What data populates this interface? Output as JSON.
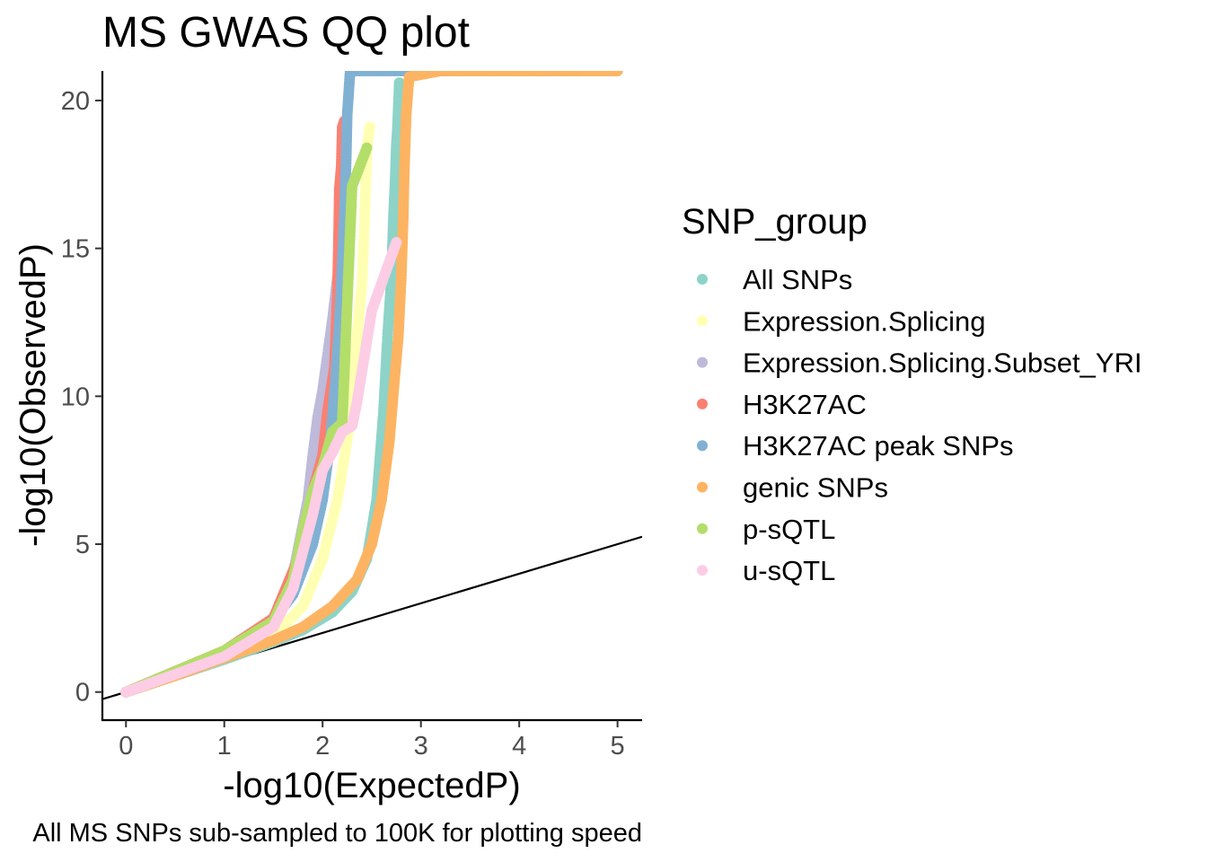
{
  "chart_data": {
    "type": "scatter",
    "title": "MS GWAS QQ plot",
    "xlabel": "-log10(ExpectedP)",
    "ylabel": "-log10(ObservedP)",
    "caption": "All MS SNPs sub-sampled to 100K for plotting speed",
    "xlim": [
      -0.24,
      5.25
    ],
    "ylim": [
      -0.95,
      21.0
    ],
    "x_ticks": [
      0,
      1,
      2,
      3,
      4,
      5
    ],
    "y_ticks": [
      0,
      5,
      10,
      15,
      20
    ],
    "grid": false,
    "reference_line": {
      "intercept": 0,
      "slope": 1
    },
    "legend": {
      "title": "SNP_group",
      "placement": "right",
      "entries": [
        {
          "name": "All SNPs",
          "color": "#8DD3C7"
        },
        {
          "name": "Expression.Splicing",
          "color": "#FFFFB3"
        },
        {
          "name": "Expression.Splicing.Subset_YRI",
          "color": "#BEBADA"
        },
        {
          "name": "H3K27AC",
          "color": "#FB8072"
        },
        {
          "name": "H3K27AC peak SNPs",
          "color": "#80B1D3"
        },
        {
          "name": "genic SNPs",
          "color": "#FDB462"
        },
        {
          "name": "p-sQTL",
          "color": "#B3DE69"
        },
        {
          "name": "u-sQTL",
          "color": "#FCCDE5"
        }
      ]
    },
    "series": [
      {
        "name": "All SNPs",
        "color": "#8DD3C7",
        "points": [
          [
            0,
            0
          ],
          [
            0.5,
            0.55
          ],
          [
            1,
            1.1
          ],
          [
            1.5,
            1.7
          ],
          [
            1.8,
            2.1
          ],
          [
            2.1,
            2.7
          ],
          [
            2.3,
            3.4
          ],
          [
            2.45,
            4.5
          ],
          [
            2.55,
            6.5
          ],
          [
            2.62,
            9.5
          ],
          [
            2.66,
            12
          ],
          [
            2.7,
            14
          ],
          [
            2.72,
            16
          ],
          [
            2.74,
            17.5
          ],
          [
            2.75,
            18.5
          ],
          [
            2.76,
            19
          ],
          [
            2.78,
            20.6
          ]
        ]
      },
      {
        "name": "Expression.Splicing",
        "color": "#FFFFB3",
        "points": [
          [
            0,
            0
          ],
          [
            1,
            1.2
          ],
          [
            1.5,
            1.9
          ],
          [
            1.8,
            2.9
          ],
          [
            2,
            4.5
          ],
          [
            2.15,
            6.5
          ],
          [
            2.25,
            8.5
          ],
          [
            2.3,
            10
          ],
          [
            2.35,
            12
          ],
          [
            2.4,
            13.8
          ],
          [
            2.42,
            15.3
          ],
          [
            2.45,
            18.3
          ],
          [
            2.48,
            19.1
          ]
        ]
      },
      {
        "name": "Expression.Splicing.Subset_YRI",
        "color": "#BEBADA",
        "points": [
          [
            0,
            0
          ],
          [
            1,
            1.4
          ],
          [
            1.5,
            2.4
          ],
          [
            1.7,
            4
          ],
          [
            1.85,
            6.5
          ],
          [
            1.9,
            8
          ],
          [
            1.95,
            9.3
          ],
          [
            2,
            10.2
          ],
          [
            2.1,
            12.6
          ],
          [
            2.15,
            14
          ],
          [
            2.2,
            14.5
          ]
        ]
      },
      {
        "name": "H3K27AC",
        "color": "#FB8072",
        "points": [
          [
            0,
            0
          ],
          [
            1,
            1.4
          ],
          [
            1.5,
            2.5
          ],
          [
            1.75,
            4.5
          ],
          [
            1.9,
            6.8
          ],
          [
            2,
            8
          ],
          [
            2.05,
            9.5
          ],
          [
            2.12,
            11
          ],
          [
            2.15,
            13.5
          ],
          [
            2.16,
            15
          ],
          [
            2.17,
            17
          ],
          [
            2.19,
            17.8
          ],
          [
            2.2,
            19.1
          ],
          [
            2.22,
            19.3
          ]
        ]
      },
      {
        "name": "H3K27AC peak SNPs",
        "color": "#80B1D3",
        "points": [
          [
            0,
            0
          ],
          [
            0.5,
            0.6
          ],
          [
            1,
            1.2
          ],
          [
            1.4,
            2
          ],
          [
            1.7,
            3.3
          ],
          [
            1.9,
            5
          ],
          [
            2,
            6.5
          ],
          [
            2.08,
            8.5
          ],
          [
            2.13,
            10.5
          ],
          [
            2.17,
            12.5
          ],
          [
            2.2,
            14.5
          ],
          [
            2.22,
            16
          ],
          [
            2.24,
            18
          ],
          [
            2.25,
            19.5
          ],
          [
            2.27,
            20.5
          ],
          [
            2.28,
            21
          ],
          [
            3.3,
            21
          ],
          [
            3.8,
            21
          ],
          [
            4.2,
            21
          ],
          [
            4.6,
            21
          ]
        ]
      },
      {
        "name": "genic SNPs",
        "color": "#FDB462",
        "points": [
          [
            0,
            0
          ],
          [
            0.5,
            0.55
          ],
          [
            1,
            1.15
          ],
          [
            1.5,
            1.75
          ],
          [
            1.8,
            2.2
          ],
          [
            2.1,
            2.9
          ],
          [
            2.35,
            3.8
          ],
          [
            2.5,
            5
          ],
          [
            2.6,
            6.5
          ],
          [
            2.68,
            8.5
          ],
          [
            2.73,
            10.5
          ],
          [
            2.77,
            12
          ],
          [
            2.8,
            14
          ],
          [
            2.82,
            16
          ],
          [
            2.83,
            17.5
          ],
          [
            2.84,
            18.5
          ],
          [
            2.85,
            19.5
          ],
          [
            2.88,
            20.8
          ],
          [
            3.2,
            21
          ],
          [
            4.5,
            21
          ],
          [
            4.7,
            21
          ],
          [
            5,
            21
          ]
        ]
      },
      {
        "name": "p-sQTL",
        "color": "#B3DE69",
        "points": [
          [
            0,
            0
          ],
          [
            1,
            1.4
          ],
          [
            1.5,
            2.4
          ],
          [
            1.7,
            3.8
          ],
          [
            1.8,
            5.5
          ],
          [
            1.9,
            6.8
          ],
          [
            2,
            7.6
          ],
          [
            2.1,
            8.8
          ],
          [
            2.2,
            9.1
          ],
          [
            2.3,
            17.1
          ],
          [
            2.45,
            18.4
          ]
        ]
      },
      {
        "name": "u-sQTL",
        "color": "#FCCDE5",
        "points": [
          [
            0,
            0
          ],
          [
            1,
            1.2
          ],
          [
            1.5,
            2.2
          ],
          [
            1.7,
            3.5
          ],
          [
            1.9,
            6
          ],
          [
            2,
            7.5
          ],
          [
            2.1,
            8.1
          ],
          [
            2.2,
            8.8
          ],
          [
            2.3,
            9
          ],
          [
            2.35,
            9.8
          ],
          [
            2.5,
            12.9
          ],
          [
            2.75,
            15.2
          ]
        ]
      }
    ]
  }
}
